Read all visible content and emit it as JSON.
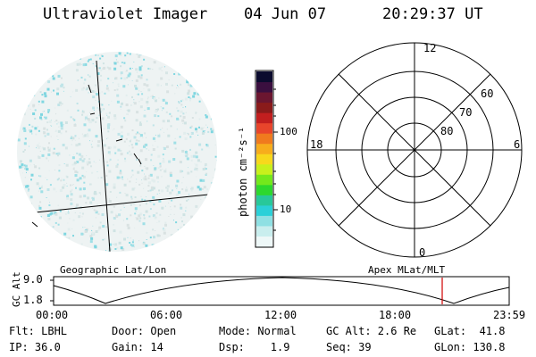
{
  "header": {
    "instrument": "Ultraviolet Imager",
    "date": "04 Jun 07",
    "time": "20:29:37 UT"
  },
  "colorbar": {
    "unit_label": "photon cm⁻²s⁻¹",
    "ticks": [
      "100",
      "10"
    ],
    "colors": [
      "#0b0b2e",
      "#3a0f3f",
      "#6b1630",
      "#8a1b1b",
      "#c21f1f",
      "#e8452b",
      "#f07a1e",
      "#f7ad1c",
      "#f7d81c",
      "#c8f01c",
      "#74e81c",
      "#2dd82d",
      "#28c89a",
      "#2bd0d8",
      "#8fe0e3",
      "#c9eeee",
      "#eef8f8"
    ]
  },
  "polar_plot": {
    "mlt_labels": {
      "top": "12",
      "left": "18",
      "right": "6",
      "bottom": "0"
    },
    "lat_labels": [
      "60",
      "70",
      "80"
    ]
  },
  "timeline": {
    "axis_label": "GC Alt",
    "y_ticks": [
      "9.0",
      "1.8"
    ],
    "left_title": "Geographic Lat/Lon",
    "right_title": "Apex MLat/MLT",
    "x_ticks": [
      "00:00",
      "06:00",
      "12:00",
      "18:00",
      "23:59"
    ],
    "current_marker_color": "#d00000"
  },
  "status": {
    "row1": [
      "Flt: LBHL",
      "Door: Open",
      "Mode: Normal",
      "GC Alt: 2.6 Re",
      "GLat:  41.8"
    ],
    "row2": [
      "IP: 36.0",
      "Gain: 14",
      "Dsp:    1.9",
      "Seq: 39",
      "GLon: 130.8"
    ]
  }
}
